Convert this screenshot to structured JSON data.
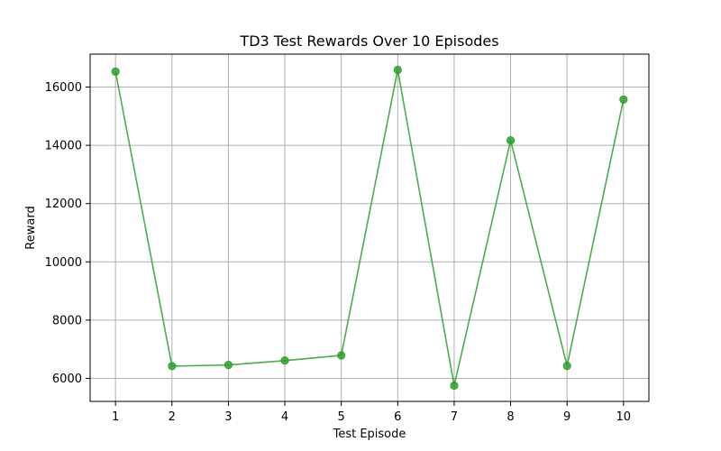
{
  "chart_data": {
    "type": "line",
    "title": "TD3 Test Rewards Over 10 Episodes",
    "xlabel": "Test Episode",
    "ylabel": "Reward",
    "x": [
      1,
      2,
      3,
      4,
      5,
      6,
      7,
      8,
      9,
      10
    ],
    "series": [
      {
        "values": [
          16530,
          6420,
          6460,
          6610,
          6790,
          16590,
          5750,
          14170,
          6430,
          15570
        ],
        "color": "#2ca02c",
        "marker": "circle"
      }
    ],
    "xticks": [
      "1",
      "2",
      "3",
      "4",
      "5",
      "6",
      "7",
      "8",
      "9",
      "10"
    ],
    "yticks": [
      "6000",
      "8000",
      "10000",
      "12000",
      "14000",
      "16000"
    ],
    "ytick_values": [
      6000,
      8000,
      10000,
      12000,
      14000,
      16000
    ],
    "xlim": [
      0.55,
      10.45
    ],
    "ylim": [
      5210,
      17130
    ],
    "grid": true,
    "legend": "none"
  }
}
